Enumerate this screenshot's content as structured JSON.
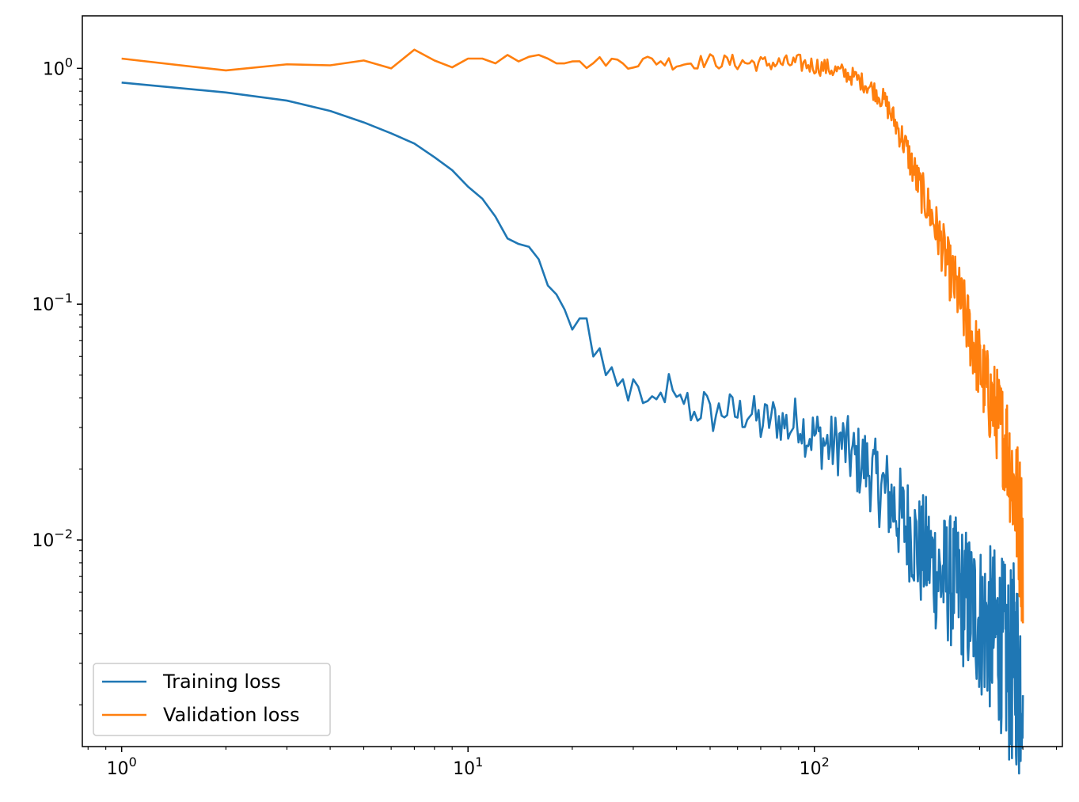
{
  "chart_data": {
    "type": "line",
    "xscale": "log",
    "yscale": "log",
    "xlim": [
      0.77,
      520
    ],
    "ylim": [
      0.00133,
      1.67
    ],
    "x_ticks": [
      {
        "value": 1,
        "base": "10",
        "exp": "0"
      },
      {
        "value": 10,
        "base": "10",
        "exp": "1"
      },
      {
        "value": 100,
        "base": "10",
        "exp": "2"
      }
    ],
    "y_ticks": [
      {
        "value": 1,
        "base": "10",
        "exp": "0"
      },
      {
        "value": 0.1,
        "base": "10",
        "exp": "−1"
      },
      {
        "value": 0.01,
        "base": "10",
        "exp": "−2"
      }
    ],
    "grid": false,
    "legend_position": "lower-left",
    "series": [
      {
        "name": "Training loss",
        "color": "#1f77b4",
        "x": [
          1,
          2,
          3,
          4,
          5,
          6,
          7,
          8,
          9,
          10,
          11,
          12,
          13,
          14,
          15,
          16,
          17,
          18,
          19,
          20,
          21,
          22,
          23,
          24,
          25,
          26,
          27,
          28,
          29,
          30,
          32,
          34,
          36,
          38,
          40,
          42,
          45,
          48,
          50,
          55,
          60,
          65,
          70,
          75,
          80,
          85,
          90,
          95,
          100,
          110,
          120,
          130,
          140,
          150,
          160,
          170,
          180,
          190,
          200,
          215,
          230,
          245,
          260,
          275,
          290,
          305,
          320,
          335,
          350,
          360,
          370,
          380,
          390,
          400
        ],
        "y": [
          0.87,
          0.79,
          0.73,
          0.66,
          0.59,
          0.53,
          0.48,
          0.42,
          0.37,
          0.315,
          0.28,
          0.235,
          0.19,
          0.18,
          0.175,
          0.155,
          0.12,
          0.11,
          0.095,
          0.078,
          0.087,
          0.087,
          0.06,
          0.065,
          0.05,
          0.054,
          0.045,
          0.048,
          0.039,
          0.048,
          0.04,
          0.035,
          0.04,
          0.045,
          0.036,
          0.04,
          0.034,
          0.038,
          0.033,
          0.036,
          0.034,
          0.035,
          0.031,
          0.033,
          0.032,
          0.03,
          0.033,
          0.028,
          0.028,
          0.025,
          0.026,
          0.022,
          0.021,
          0.018,
          0.016,
          0.014,
          0.012,
          0.011,
          0.009,
          0.0085,
          0.007,
          0.0068,
          0.0062,
          0.0055,
          0.005,
          0.0045,
          0.0042,
          0.004,
          0.0035,
          0.003,
          0.0028,
          0.0032,
          0.0025,
          0.0035
        ],
        "noise": [
          0,
          0,
          0,
          0,
          0,
          0,
          0,
          0,
          0,
          0,
          0,
          0,
          0,
          0,
          0,
          0,
          0,
          0,
          0,
          0,
          0,
          0,
          0,
          0,
          0,
          0,
          0,
          0,
          0,
          0,
          0.1,
          0.12,
          0.12,
          0.12,
          0.14,
          0.14,
          0.14,
          0.15,
          0.15,
          0.15,
          0.16,
          0.16,
          0.18,
          0.18,
          0.18,
          0.2,
          0.2,
          0.2,
          0.22,
          0.24,
          0.26,
          0.28,
          0.3,
          0.32,
          0.35,
          0.38,
          0.4,
          0.42,
          0.45,
          0.48,
          0.5,
          0.52,
          0.55,
          0.58,
          0.6,
          0.62,
          0.65,
          0.68,
          0.7,
          0.75,
          0.78,
          0.8,
          0.85,
          0.85
        ]
      },
      {
        "name": "Validation loss",
        "color": "#ff7f0e",
        "x": [
          1,
          2,
          3,
          4,
          5,
          6,
          7,
          8,
          9,
          10,
          11,
          12,
          13,
          14,
          15,
          16,
          17,
          18,
          19,
          20,
          22,
          25,
          28,
          30,
          35,
          40,
          45,
          50,
          55,
          60,
          70,
          80,
          90,
          100,
          110,
          120,
          130,
          140,
          150,
          160,
          170,
          180,
          190,
          200,
          215,
          230,
          245,
          260,
          275,
          290,
          305,
          320,
          335,
          350,
          360,
          370,
          380,
          390,
          400
        ],
        "y": [
          1.1,
          0.98,
          1.04,
          1.03,
          1.08,
          1.0,
          1.2,
          1.08,
          1.01,
          1.1,
          1.1,
          1.05,
          1.14,
          1.07,
          1.12,
          1.14,
          1.1,
          1.05,
          1.05,
          1.07,
          1.04,
          1.08,
          1.06,
          1.06,
          1.08,
          1.05,
          1.06,
          1.08,
          1.06,
          1.06,
          1.05,
          1.05,
          1.05,
          1.03,
          1.0,
          0.96,
          0.92,
          0.86,
          0.8,
          0.72,
          0.6,
          0.5,
          0.4,
          0.32,
          0.25,
          0.19,
          0.14,
          0.11,
          0.085,
          0.065,
          0.05,
          0.04,
          0.035,
          0.028,
          0.025,
          0.02,
          0.015,
          0.012,
          0.009
        ],
        "noise": [
          0,
          0,
          0,
          0,
          0,
          0,
          0,
          0,
          0,
          0,
          0,
          0,
          0,
          0,
          0,
          0,
          0,
          0,
          0,
          0,
          0.04,
          0.05,
          0.05,
          0.06,
          0.06,
          0.06,
          0.06,
          0.06,
          0.07,
          0.07,
          0.07,
          0.07,
          0.08,
          0.08,
          0.08,
          0.08,
          0.08,
          0.08,
          0.09,
          0.1,
          0.12,
          0.14,
          0.16,
          0.18,
          0.2,
          0.22,
          0.25,
          0.28,
          0.3,
          0.32,
          0.35,
          0.38,
          0.4,
          0.45,
          0.5,
          0.55,
          0.6,
          0.65,
          0.7
        ]
      }
    ]
  }
}
